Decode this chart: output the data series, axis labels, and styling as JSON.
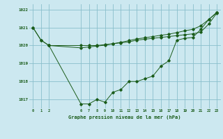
{
  "title": "Graphe pression niveau de la mer (hPa)",
  "background_color": "#cce8f0",
  "grid_color": "#8abfcc",
  "line_color": "#1a5c1a",
  "xlim": [
    -0.5,
    23.5
  ],
  "ylim": [
    1016.5,
    1022.3
  ],
  "yticks": [
    1017,
    1018,
    1019,
    1020,
    1021,
    1022
  ],
  "xticks": [
    0,
    1,
    2,
    6,
    7,
    8,
    9,
    10,
    11,
    12,
    13,
    14,
    15,
    16,
    17,
    18,
    19,
    20,
    21,
    22,
    23
  ],
  "line1_x": [
    0,
    1,
    2,
    6,
    7,
    8,
    9,
    10,
    11,
    12,
    13,
    14,
    15,
    16,
    17,
    18,
    19,
    20,
    21,
    22,
    23
  ],
  "line1_y": [
    1021.0,
    1020.3,
    1020.0,
    1020.0,
    1020.0,
    1020.0,
    1020.05,
    1020.1,
    1020.15,
    1020.2,
    1020.3,
    1020.35,
    1020.4,
    1020.45,
    1020.5,
    1020.55,
    1020.6,
    1020.65,
    1020.75,
    1021.2,
    1021.8
  ],
  "line2_x": [
    2,
    6,
    7,
    8,
    9,
    10,
    11,
    12,
    13,
    14,
    15,
    16,
    17,
    18,
    19,
    20,
    21,
    22,
    23
  ],
  "line2_y": [
    1020.0,
    1016.75,
    1016.75,
    1017.0,
    1016.85,
    1017.4,
    1017.55,
    1018.0,
    1018.0,
    1018.15,
    1018.3,
    1018.85,
    1019.15,
    1020.3,
    1020.4,
    1020.45,
    1020.9,
    1021.45,
    1021.85
  ],
  "line3_x": [
    0,
    1,
    2,
    6,
    7,
    8,
    9,
    10,
    11,
    12,
    13,
    14,
    15,
    16,
    17,
    18,
    19,
    20,
    21,
    22,
    23
  ],
  "line3_y": [
    1021.0,
    1020.3,
    1020.0,
    1019.87,
    1019.92,
    1019.97,
    1020.02,
    1020.1,
    1020.18,
    1020.27,
    1020.37,
    1020.43,
    1020.5,
    1020.57,
    1020.63,
    1020.72,
    1020.82,
    1020.9,
    1021.1,
    1021.45,
    1021.82
  ]
}
